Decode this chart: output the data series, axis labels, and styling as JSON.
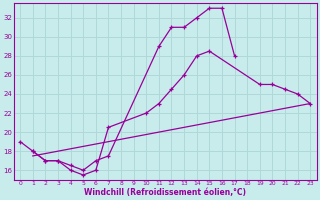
{
  "xlabel": "Windchill (Refroidissement éolien,°C)",
  "bg_color": "#c8ecec",
  "line_color": "#990099",
  "grid_color": "#b0d8d8",
  "xlim": [
    -0.5,
    23.5
  ],
  "ylim": [
    15,
    33.5
  ],
  "yticks": [
    16,
    18,
    20,
    22,
    24,
    26,
    28,
    30,
    32
  ],
  "xticks": [
    0,
    1,
    2,
    3,
    4,
    5,
    6,
    7,
    8,
    9,
    10,
    11,
    12,
    13,
    14,
    15,
    16,
    17,
    18,
    19,
    20,
    21,
    22,
    23
  ],
  "line1_x": [
    0,
    1,
    2,
    3,
    4,
    5,
    6,
    7,
    11,
    12,
    13,
    14,
    15,
    16,
    17
  ],
  "line1_y": [
    19,
    18,
    17,
    17,
    16.5,
    16,
    17,
    17.5,
    29,
    31,
    31,
    32,
    33,
    33,
    28
  ],
  "line2_x": [
    1,
    2,
    3,
    4,
    5,
    6,
    7,
    10,
    11,
    12,
    13,
    14,
    15,
    19,
    20,
    21,
    22,
    23
  ],
  "line2_y": [
    18,
    17,
    17,
    16,
    15.5,
    16,
    20.5,
    22,
    23,
    24.5,
    26,
    28,
    28.5,
    25,
    25,
    24.5,
    24,
    23
  ],
  "line3_x": [
    1,
    23
  ],
  "line3_y": [
    17.5,
    23
  ]
}
